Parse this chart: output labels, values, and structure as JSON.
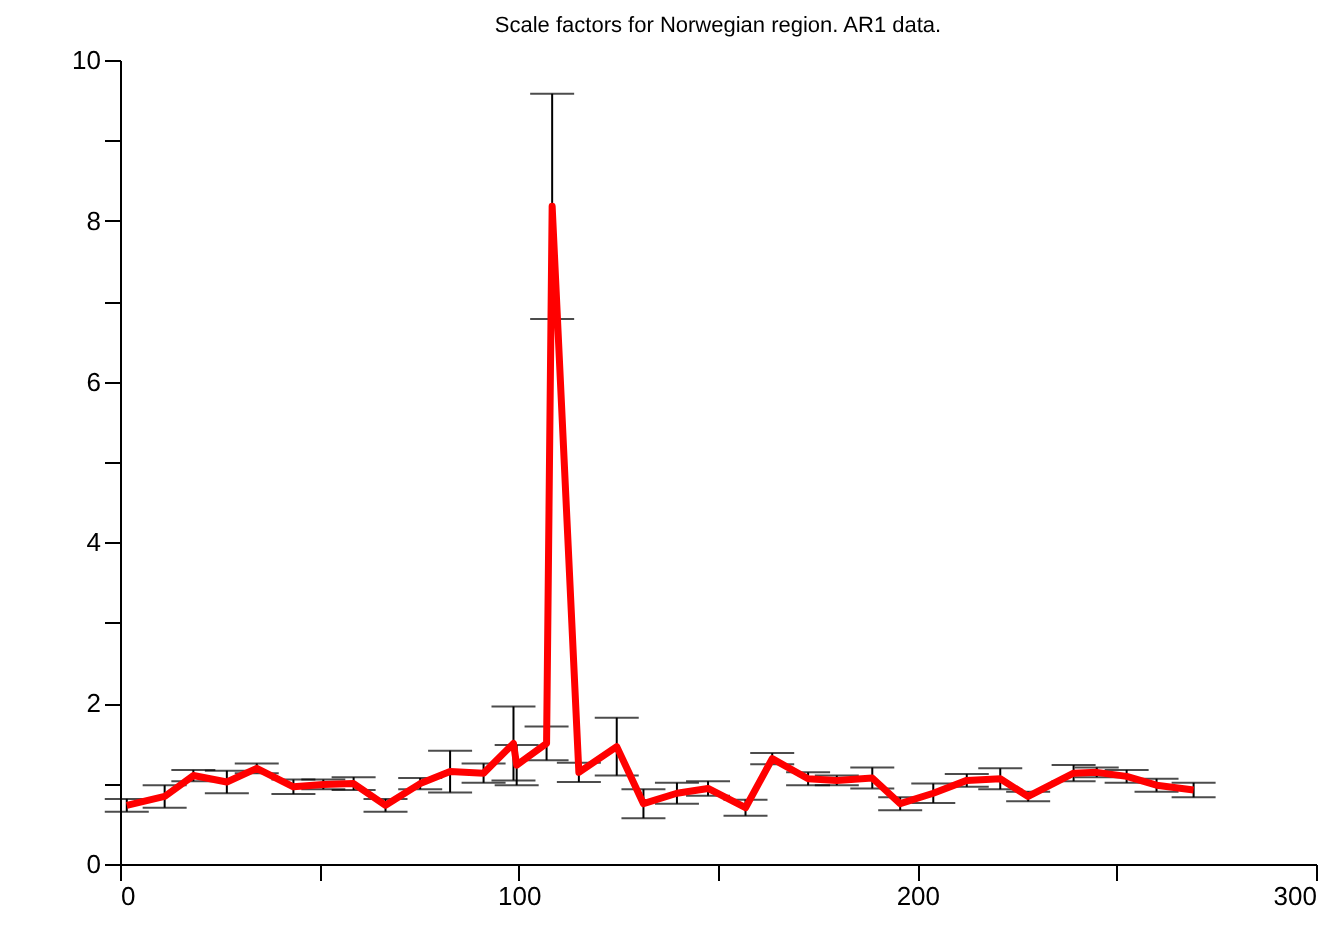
{
  "chart_data": {
    "type": "line",
    "title": "Scale factors for Norwegian region. AR1 data.",
    "x": [
      1.7,
      11.2,
      18.4,
      26.8,
      34.3,
      43.5,
      51.0,
      58.6,
      66.6,
      75.3,
      82.8,
      91.2,
      98.7,
      99.5,
      107.0,
      108.4,
      115.1,
      124.6,
      131.3,
      139.7,
      147.5,
      156.9,
      163.6,
      172.6,
      179.8,
      188.7,
      195.7,
      204.0,
      212.4,
      220.8,
      227.8,
      239.2,
      245.0,
      252.5,
      260.0,
      269.3
    ],
    "series": [
      {
        "color": "#ff0000",
        "values": [
          0.73,
          0.84,
          1.1,
          1.02,
          1.19,
          0.96,
          0.99,
          1.0,
          0.73,
          1.0,
          1.15,
          1.13,
          1.5,
          1.23,
          1.5,
          8.18,
          1.14,
          1.46,
          0.75,
          0.88,
          0.94,
          0.7,
          1.31,
          1.06,
          1.04,
          1.07,
          0.75,
          0.88,
          1.04,
          1.06,
          0.84,
          1.13,
          1.14,
          1.09,
          0.98,
          0.92
        ],
        "errors": [
          0.08,
          0.14,
          0.07,
          0.14,
          0.06,
          0.09,
          0.06,
          0.08,
          0.08,
          0.07,
          0.26,
          0.12,
          0.46,
          0.25,
          0.21,
          1.4,
          0.12,
          0.36,
          0.18,
          0.13,
          0.09,
          0.1,
          0.07,
          0.08,
          0.06,
          0.13,
          0.08,
          0.12,
          0.08,
          0.13,
          0.06,
          0.1,
          0.06,
          0.08,
          0.08,
          0.09
        ]
      }
    ],
    "xlim": [
      0,
      300
    ],
    "ylim": [
      0,
      10
    ],
    "xticks": [
      0,
      {
        "value": 50,
        "label": null
      },
      100,
      {
        "value": 150,
        "label": null
      },
      200,
      {
        "value": 250,
        "label": null
      },
      300
    ],
    "yticks": [
      0,
      {
        "value": 1,
        "label": null
      },
      2,
      {
        "value": 3,
        "label": null
      },
      4,
      {
        "value": 5,
        "label": null
      },
      6,
      {
        "value": 7,
        "label": null
      },
      8,
      {
        "value": 9,
        "label": null
      },
      10
    ],
    "grid": false,
    "marker": "none",
    "line_style": "solid"
  }
}
